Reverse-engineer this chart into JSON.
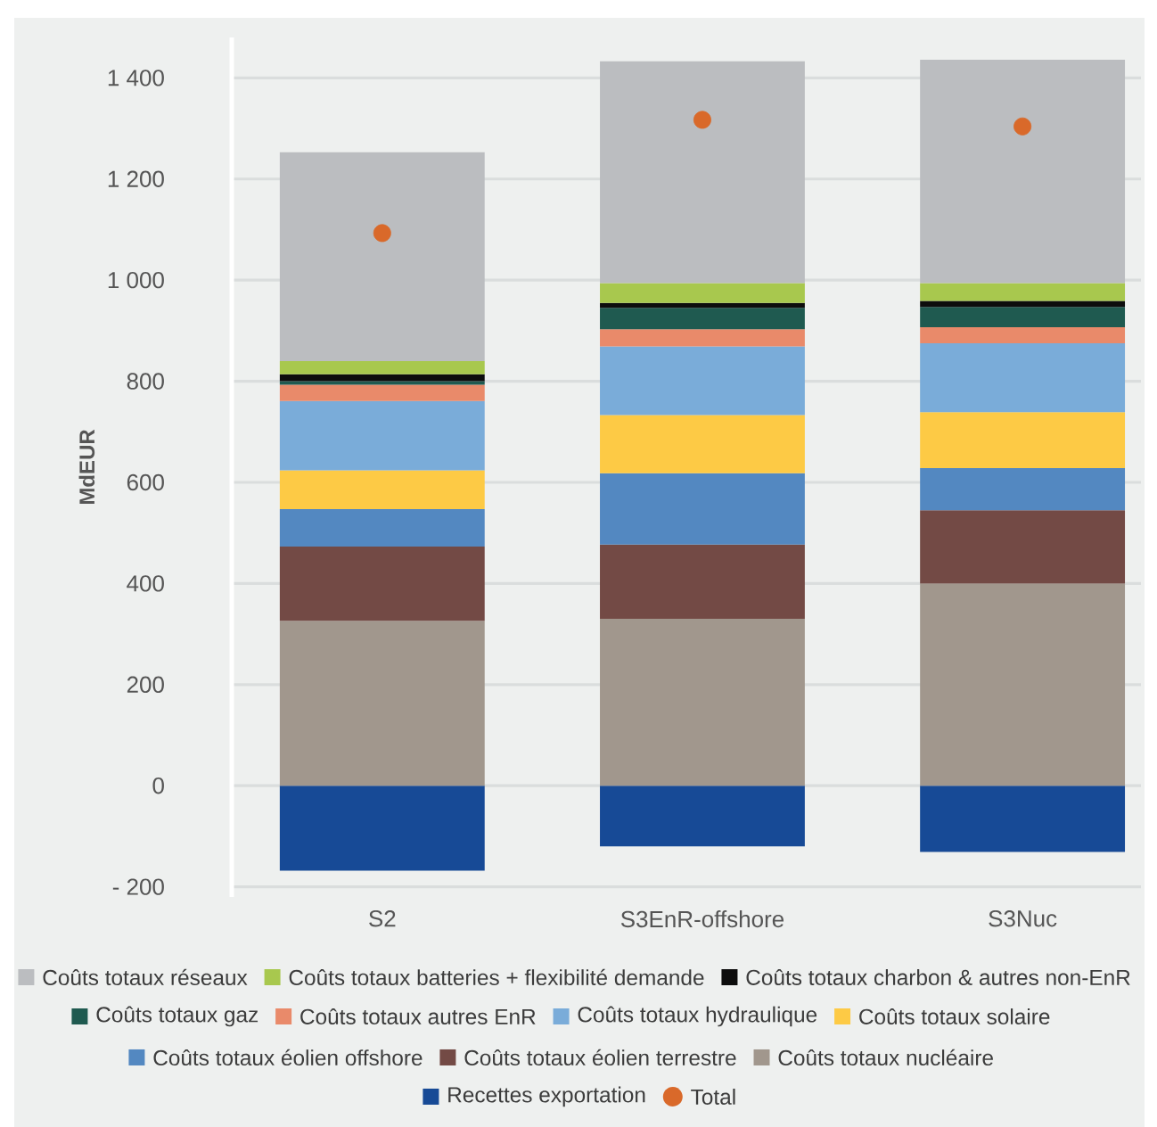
{
  "chart_data": {
    "type": "bar",
    "stacked": true,
    "ylabel": "MdEUR",
    "categories": [
      "S2",
      "S3EnR-offshore",
      "S3Nuc"
    ],
    "ylim": [
      -220,
      1480
    ],
    "yticks": [
      {
        "value": -200,
        "label": "- 200"
      },
      0,
      200,
      400,
      600,
      800,
      {
        "value": 1000,
        "label": "1 000"
      },
      {
        "value": 1200,
        "label": "1 200"
      },
      {
        "value": 1400,
        "label": "1 400"
      }
    ],
    "grid": "y",
    "legend": "bottom",
    "series": [
      {
        "name": "Recettes exportation",
        "color": "#174a96",
        "values": [
          -168,
          -120,
          -131
        ]
      },
      {
        "name": "Coûts totaux nucléaire",
        "color": "#a1978d",
        "values": [
          326,
          330,
          400
        ]
      },
      {
        "name": "Coûts totaux éolien terrestre",
        "color": "#734a45",
        "values": [
          147,
          147,
          145
        ]
      },
      {
        "name": "Coûts totaux éolien offshore",
        "color": "#5388c1",
        "values": [
          74,
          141,
          83
        ]
      },
      {
        "name": "Coûts totaux solaire",
        "color": "#fdca45",
        "values": [
          77,
          115,
          111
        ]
      },
      {
        "name": "Coûts totaux hydraulique",
        "color": "#7aacd9",
        "values": [
          137,
          136,
          136
        ]
      },
      {
        "name": "Coûts totaux autres EnR",
        "color": "#e98a6a",
        "values": [
          32,
          34,
          32
        ]
      },
      {
        "name": "Coûts totaux gaz",
        "color": "#1f5a50",
        "values": [
          7,
          42,
          40
        ]
      },
      {
        "name": "Coûts totaux charbon & autres non-EnR",
        "color": "#0d0d0d",
        "values": [
          14,
          10,
          12
        ]
      },
      {
        "name": "Coûts totaux batteries + flexibilité demande",
        "color": "#a8c84e",
        "values": [
          26,
          39,
          35
        ]
      },
      {
        "name": "Coûts totaux réseaux",
        "color": "#bbbdc0",
        "values": [
          413,
          439,
          442
        ]
      },
      {
        "name": "Total",
        "type": "scatter",
        "marker": "circle",
        "color": "#d9692a",
        "values": [
          1093,
          1317,
          1304
        ]
      }
    ]
  }
}
